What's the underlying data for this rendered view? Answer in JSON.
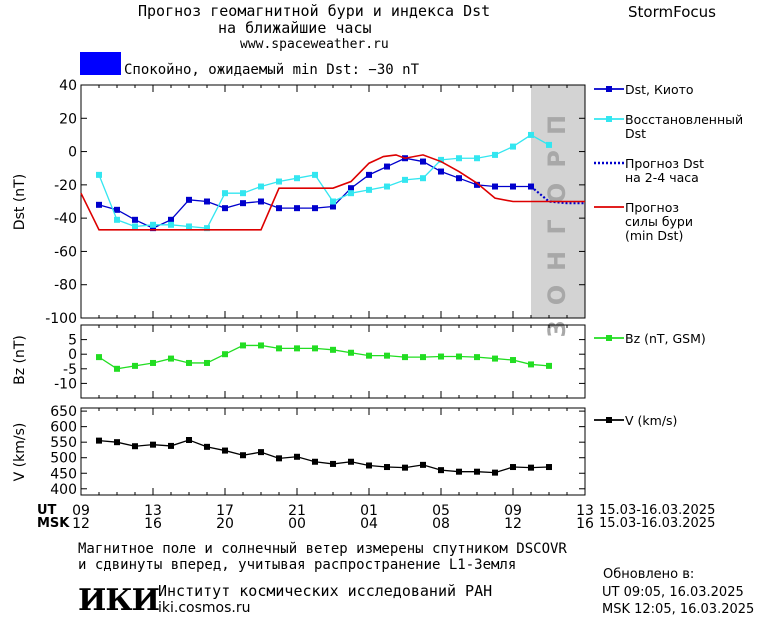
{
  "header": {
    "title_line1": "Прогноз геомагнитной бури и индекса Dst",
    "title_line2": "на ближайшие часы",
    "website": "www.spaceweather.ru",
    "brand": "StormFocus",
    "status_text": "Спокойно, ожидаемый min Dst: −30 nT",
    "status_color": "#0000ff"
  },
  "colors": {
    "dst_kyoto": "#0000cc",
    "dst_restored": "#33e6f0",
    "dst_forecast": "#0000cc",
    "storm_forecast": "#dd0000",
    "bz": "#22dd22",
    "v": "#000000",
    "forecast_zone": "#d3d3d3"
  },
  "forecast_zone_label": "ПРОГНОЗ",
  "chart_data": [
    {
      "type": "line",
      "name": "dst",
      "ylabel": "Dst (nT)",
      "ylim": [
        -100,
        40
      ],
      "yticks": [
        40,
        20,
        0,
        -20,
        -40,
        -60,
        -80,
        -100
      ],
      "xlim": [
        9,
        37
      ],
      "forecast_start_hour": 34,
      "series": [
        {
          "name": "Dst, Киото",
          "legend": [
            "Dst, Киото"
          ],
          "color_key": "dst_kyoto",
          "marker": true,
          "x": [
            10,
            11,
            12,
            13,
            14,
            15,
            16,
            17,
            18,
            19,
            20,
            21,
            22,
            23,
            24,
            25,
            26,
            27,
            28,
            29,
            30,
            31,
            32,
            33,
            34
          ],
          "y": [
            -32,
            -35,
            -41,
            -46,
            -41,
            -29,
            -30,
            -34,
            -31,
            -30,
            -34,
            -34,
            -34,
            -33,
            -22,
            -14,
            -9,
            -4,
            -6,
            -12,
            -16,
            -20,
            -21,
            -21,
            -21
          ]
        },
        {
          "name": "Восстановленный Dst",
          "legend": [
            "Восстановленный",
            "Dst"
          ],
          "color_key": "dst_restored",
          "marker": true,
          "x": [
            10,
            11,
            12,
            13,
            14,
            15,
            16,
            17,
            18,
            19,
            20,
            21,
            22,
            23,
            24,
            25,
            26,
            27,
            28,
            29,
            30,
            31,
            32,
            33,
            34,
            35
          ],
          "y": [
            -14,
            -41,
            -45,
            -44,
            -44,
            -45,
            -46,
            -25,
            -25,
            -21,
            -18,
            -16,
            -14,
            -30,
            -25,
            -23,
            -21,
            -17,
            -16,
            -5,
            -4,
            -4,
            -2,
            3,
            10,
            4
          ]
        },
        {
          "name": "Прогноз Dst на 2-4 часа",
          "legend": [
            "Прогноз Dst",
            "на 2-4 часа"
          ],
          "color_key": "dst_forecast",
          "dotted": true,
          "x": [
            34,
            35,
            36,
            37
          ],
          "y": [
            -21,
            -30,
            -31,
            -31
          ]
        },
        {
          "name": "Прогноз силы бури (min Dst)",
          "legend": [
            "Прогноз",
            "силы бури",
            "(min Dst)"
          ],
          "color_key": "storm_forecast",
          "step": true,
          "x": [
            9,
            10,
            19,
            20,
            23,
            24,
            25,
            25.8,
            26.5,
            27,
            28,
            29,
            30,
            31,
            32,
            33,
            34,
            37
          ],
          "y": [
            -25,
            -47,
            -47,
            -22,
            -22,
            -18,
            -7,
            -3,
            -2,
            -4,
            -2,
            -6,
            -12,
            -19,
            -28,
            -30,
            -30,
            -30
          ]
        }
      ]
    },
    {
      "type": "line",
      "name": "bz",
      "ylabel": "Bz (nT)",
      "ylim": [
        -15,
        10
      ],
      "yticks": [
        5,
        0,
        -5,
        -10
      ],
      "xlim": [
        9,
        37
      ],
      "series": [
        {
          "name": "Bz (nT, GSM)",
          "legend": [
            "Bz (nT, GSM)"
          ],
          "color_key": "bz",
          "marker": true,
          "x": [
            10,
            11,
            12,
            13,
            14,
            15,
            16,
            17,
            18,
            19,
            20,
            21,
            22,
            23,
            24,
            25,
            26,
            27,
            28,
            29,
            30,
            31,
            32,
            33,
            34,
            35
          ],
          "y": [
            -1,
            -5,
            -4,
            -3,
            -1.5,
            -3,
            -3,
            0,
            3,
            3,
            2,
            2,
            2,
            1.5,
            0.5,
            -0.5,
            -0.5,
            -1,
            -1,
            -0.8,
            -0.8,
            -1,
            -1.5,
            -2,
            -3.5,
            -4
          ]
        }
      ]
    },
    {
      "type": "line",
      "name": "v",
      "ylabel": "V (km/s)",
      "ylim": [
        380,
        660
      ],
      "yticks": [
        650,
        600,
        550,
        500,
        450,
        400
      ],
      "xlim": [
        9,
        37
      ],
      "series": [
        {
          "name": "V (km/s)",
          "legend": [
            "V (km/s)"
          ],
          "color_key": "v",
          "marker": true,
          "x": [
            10,
            11,
            12,
            13,
            14,
            15,
            16,
            17,
            18,
            19,
            20,
            21,
            22,
            23,
            24,
            25,
            26,
            27,
            28,
            29,
            30,
            31,
            32,
            33,
            34,
            35
          ],
          "y": [
            555,
            550,
            537,
            542,
            538,
            557,
            535,
            523,
            508,
            518,
            498,
            503,
            487,
            480,
            487,
            475,
            470,
            468,
            477,
            460,
            455,
            455,
            452,
            470,
            468,
            470
          ]
        }
      ]
    }
  ],
  "x_axis": {
    "ut_label": "UT",
    "msk_label": "MSK",
    "ut_ticks": [
      "09",
      "13",
      "17",
      "21",
      "01",
      "05",
      "09",
      "13"
    ],
    "msk_ticks": [
      "12",
      "16",
      "20",
      "00",
      "04",
      "08",
      "12",
      "16"
    ],
    "date_range_ut": "15.03-16.03.2025",
    "date_range_msk": "15.03-16.03.2025"
  },
  "footer": {
    "note_line1": "Магнитное поле и солнечный ветер измерены спутником DSCOVR",
    "note_line2": "и сдвинуты вперед, учитывая распространение L1-Земля",
    "logo": "ИКИ",
    "institute": "Институт космических исследований РАН",
    "institute_site": "iki.cosmos.ru",
    "updated_label": "Обновлено в:",
    "updated_ut": "UT  09:05, 16.03.2025",
    "updated_msk": "MSK 12:05, 16.03.2025"
  }
}
